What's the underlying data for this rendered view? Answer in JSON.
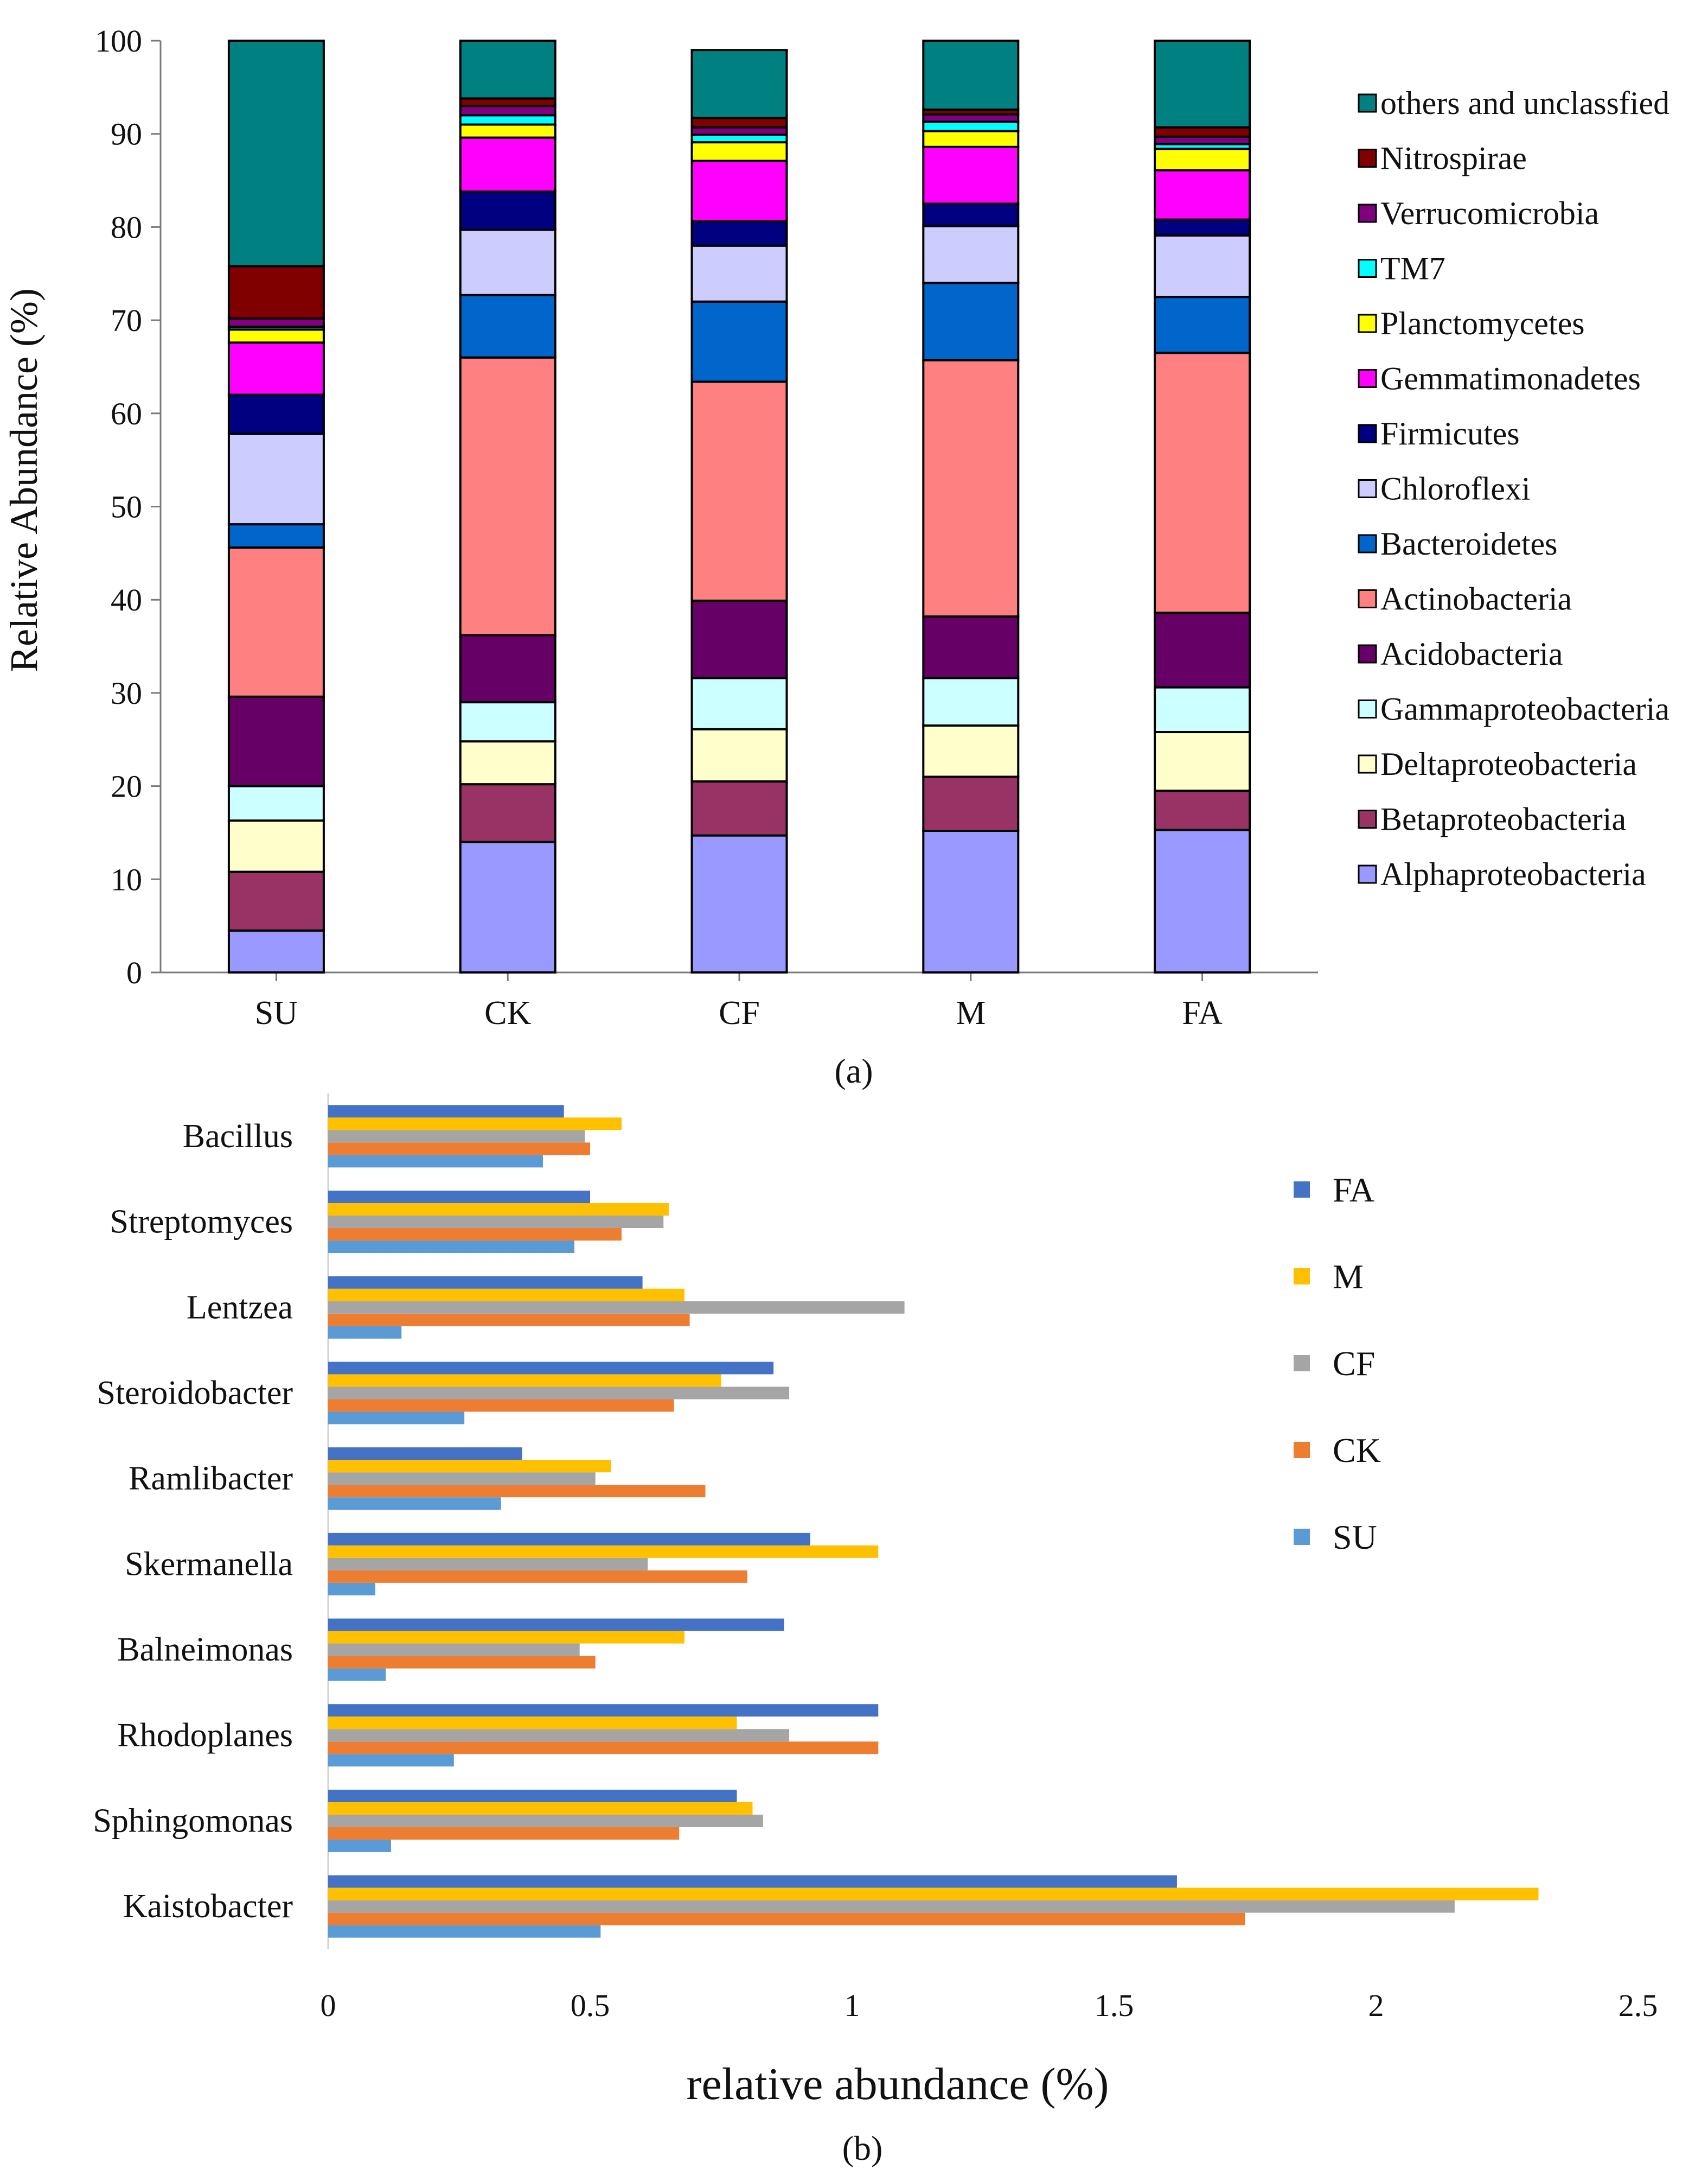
{
  "chart_data": [
    {
      "panel_label": "a",
      "type": "bar",
      "stacked": true,
      "orientation": "vertical",
      "ylabel": "Relative Abundance (%)",
      "xlabel": "",
      "ylim": [
        0,
        100
      ],
      "yticks": [
        "0",
        "10",
        "20",
        "30",
        "40",
        "50",
        "60",
        "70",
        "80",
        "90",
        "100"
      ],
      "categories": [
        "SU",
        "CK",
        "CF",
        "M",
        "FA"
      ],
      "legend_position": "right",
      "series": [
        {
          "name": "Alphaproteobacteria",
          "color": "#9999FF",
          "values": [
            4.5,
            14.0,
            14.7,
            15.2,
            15.3
          ]
        },
        {
          "name": "Betaproteobacteria",
          "color": "#993366",
          "values": [
            6.3,
            6.2,
            5.8,
            5.8,
            4.2
          ]
        },
        {
          "name": "Deltaproteobacteria",
          "color": "#FFFFCC",
          "values": [
            5.5,
            4.6,
            5.6,
            5.5,
            6.3
          ]
        },
        {
          "name": "Gammaproteobacteria",
          "color": "#CCFFFF",
          "values": [
            3.7,
            4.2,
            5.5,
            5.1,
            4.8
          ]
        },
        {
          "name": "Acidobacteria",
          "color": "#660066",
          "values": [
            9.6,
            7.2,
            8.3,
            6.6,
            8.0
          ]
        },
        {
          "name": "Actinobacteria",
          "color": "#FF8080",
          "values": [
            16.0,
            29.8,
            23.5,
            27.5,
            27.9
          ]
        },
        {
          "name": "Bacteroidetes",
          "color": "#0066CC",
          "values": [
            2.5,
            6.7,
            8.6,
            8.3,
            6.0
          ]
        },
        {
          "name": "Chloroflexi",
          "color": "#CCCCFF",
          "values": [
            9.7,
            7.0,
            6.0,
            6.1,
            6.6
          ]
        },
        {
          "name": "Firmicutes",
          "color": "#000080",
          "values": [
            4.2,
            4.1,
            2.6,
            2.4,
            1.7
          ]
        },
        {
          "name": "Gemmatimonadetes",
          "color": "#FF00FF",
          "values": [
            5.6,
            5.8,
            6.5,
            6.1,
            5.3
          ]
        },
        {
          "name": "Planctomycetes",
          "color": "#FFFF00",
          "values": [
            1.4,
            1.4,
            2.0,
            1.7,
            2.3
          ]
        },
        {
          "name": "TM7",
          "color": "#00FFFF",
          "values": [
            0.3,
            1.0,
            0.8,
            1.0,
            0.5
          ]
        },
        {
          "name": "Verrucomicrobia",
          "color": "#800080",
          "values": [
            0.9,
            1.0,
            0.8,
            0.8,
            0.8
          ]
        },
        {
          "name": "Nitrospirae",
          "color": "#800000",
          "values": [
            5.6,
            0.8,
            1.0,
            0.5,
            1.0
          ]
        },
        {
          "name": "others and unclassfied",
          "color": "#008080",
          "values": [
            24.2,
            6.2,
            7.3,
            7.4,
            9.3
          ]
        }
      ]
    },
    {
      "panel_label": "b",
      "type": "bar",
      "stacked": false,
      "orientation": "horizontal",
      "xlabel": "relative abundance (%)",
      "ylabel": "",
      "xlim": [
        0,
        2.5
      ],
      "xticks": [
        "0",
        "0.5",
        "1",
        "1.5",
        "2",
        "2.5"
      ],
      "categories": [
        "Kaistobacter",
        "Sphingomonas",
        "Rhodoplanes",
        "Balneimonas",
        "Skermanella",
        "Ramlibacter",
        "Steroidobacter",
        "Lentzea",
        "Streptomyces",
        "Bacillus"
      ],
      "legend_position": "right",
      "series": [
        {
          "name": "SU",
          "color": "#5B9BD5",
          "values": [
            0.52,
            0.12,
            0.24,
            0.11,
            0.09,
            0.33,
            0.26,
            0.14,
            0.47,
            0.41
          ]
        },
        {
          "name": "CK",
          "color": "#ED7D31",
          "values": [
            1.75,
            0.67,
            1.05,
            0.51,
            0.8,
            0.72,
            0.66,
            0.69,
            0.56,
            0.5
          ]
        },
        {
          "name": "CF",
          "color": "#A5A5A5",
          "values": [
            2.15,
            0.83,
            0.88,
            0.48,
            0.61,
            0.51,
            0.88,
            1.1,
            0.64,
            0.49
          ]
        },
        {
          "name": "M",
          "color": "#FFC000",
          "values": [
            2.31,
            0.81,
            0.78,
            0.68,
            1.05,
            0.54,
            0.75,
            0.68,
            0.65,
            0.56
          ]
        },
        {
          "name": "FA",
          "color": "#4472C4",
          "values": [
            1.62,
            0.78,
            1.05,
            0.87,
            0.92,
            0.37,
            0.85,
            0.6,
            0.5,
            0.45
          ]
        }
      ]
    }
  ]
}
